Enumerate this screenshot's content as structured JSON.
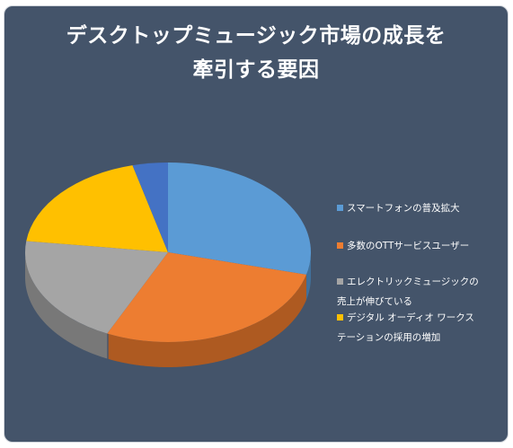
{
  "chart_data": {
    "type": "pie",
    "title": "デスクトップミュージック市場の成長を牽引する要因",
    "title_lines": [
      "デスクトップミュージック市場の成長を",
      "牽引する要因"
    ],
    "three_d": true,
    "legend_position": "right",
    "background": "#44546a",
    "slices": [
      {
        "label": "スマートフォンの普及拡大",
        "value": 29,
        "color": "#5b9bd5",
        "shade": "#41719c"
      },
      {
        "label": "多数のOTTサービスユーザー",
        "value": 28,
        "color": "#ed7d31",
        "shade": "#ae5a21"
      },
      {
        "label": "エレクトリックミュージックの売上が伸びている",
        "label_lines": [
          "エレクトリックミュージックの",
          "売上が伸びている"
        ],
        "value": 20,
        "color": "#a5a5a5",
        "shade": "#787878"
      },
      {
        "label": "デジタル オーディオ ワークステーションの採用の増加",
        "label_lines": [
          "デジタル オーディオ ワークス",
          "テーションの採用の増加"
        ],
        "value": 19,
        "color": "#ffc000",
        "shade": "#bc8c00"
      },
      {
        "label": "",
        "value": 4,
        "color": "#4472c4",
        "shade": "#2f5597"
      }
    ]
  }
}
